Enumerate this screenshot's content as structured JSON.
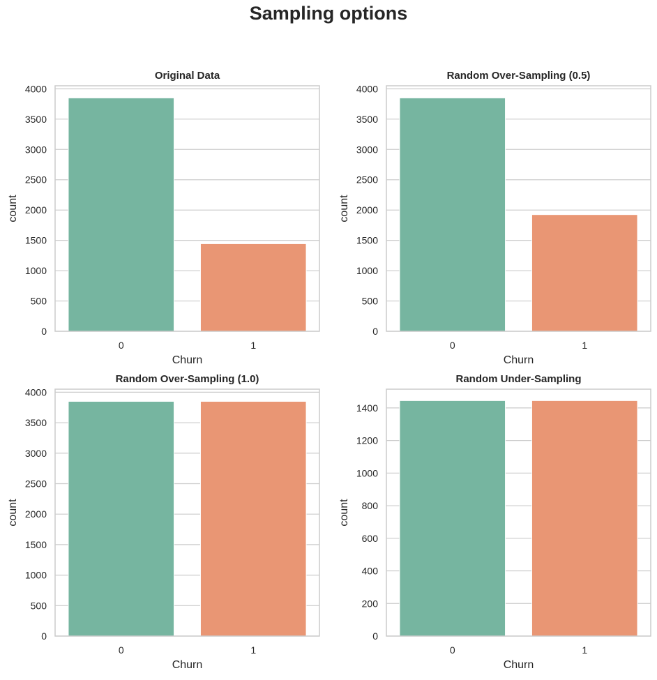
{
  "figure": {
    "suptitle": "Sampling options"
  },
  "colors": {
    "class_0": "#76b5a0",
    "class_1": "#e99674",
    "grid": "#cccccc",
    "spine": "#cccccc"
  },
  "chart_data": [
    {
      "type": "bar",
      "title": "Original Data",
      "xlabel": "Churn",
      "ylabel": "count",
      "categories": [
        "0",
        "1"
      ],
      "values": [
        3850,
        1445
      ],
      "ylim": [
        0,
        4050
      ],
      "yticks": [
        0,
        500,
        1000,
        1500,
        2000,
        2500,
        3000,
        3500,
        4000
      ],
      "grid": "y"
    },
    {
      "type": "bar",
      "title": "Random Over-Sampling (0.5)",
      "xlabel": "Churn",
      "ylabel": "count",
      "categories": [
        "0",
        "1"
      ],
      "values": [
        3850,
        1925
      ],
      "ylim": [
        0,
        4050
      ],
      "yticks": [
        0,
        500,
        1000,
        1500,
        2000,
        2500,
        3000,
        3500,
        4000
      ],
      "grid": "y"
    },
    {
      "type": "bar",
      "title": "Random Over-Sampling (1.0)",
      "xlabel": "Churn",
      "ylabel": "count",
      "categories": [
        "0",
        "1"
      ],
      "values": [
        3850,
        3850
      ],
      "ylim": [
        0,
        4050
      ],
      "yticks": [
        0,
        500,
        1000,
        1500,
        2000,
        2500,
        3000,
        3500,
        4000
      ],
      "grid": "y"
    },
    {
      "type": "bar",
      "title": "Random Under-Sampling",
      "xlabel": "Churn",
      "ylabel": "count",
      "categories": [
        "0",
        "1"
      ],
      "values": [
        1445,
        1445
      ],
      "ylim": [
        0,
        1515
      ],
      "yticks": [
        0,
        200,
        400,
        600,
        800,
        1000,
        1200,
        1400
      ],
      "grid": "y"
    }
  ]
}
